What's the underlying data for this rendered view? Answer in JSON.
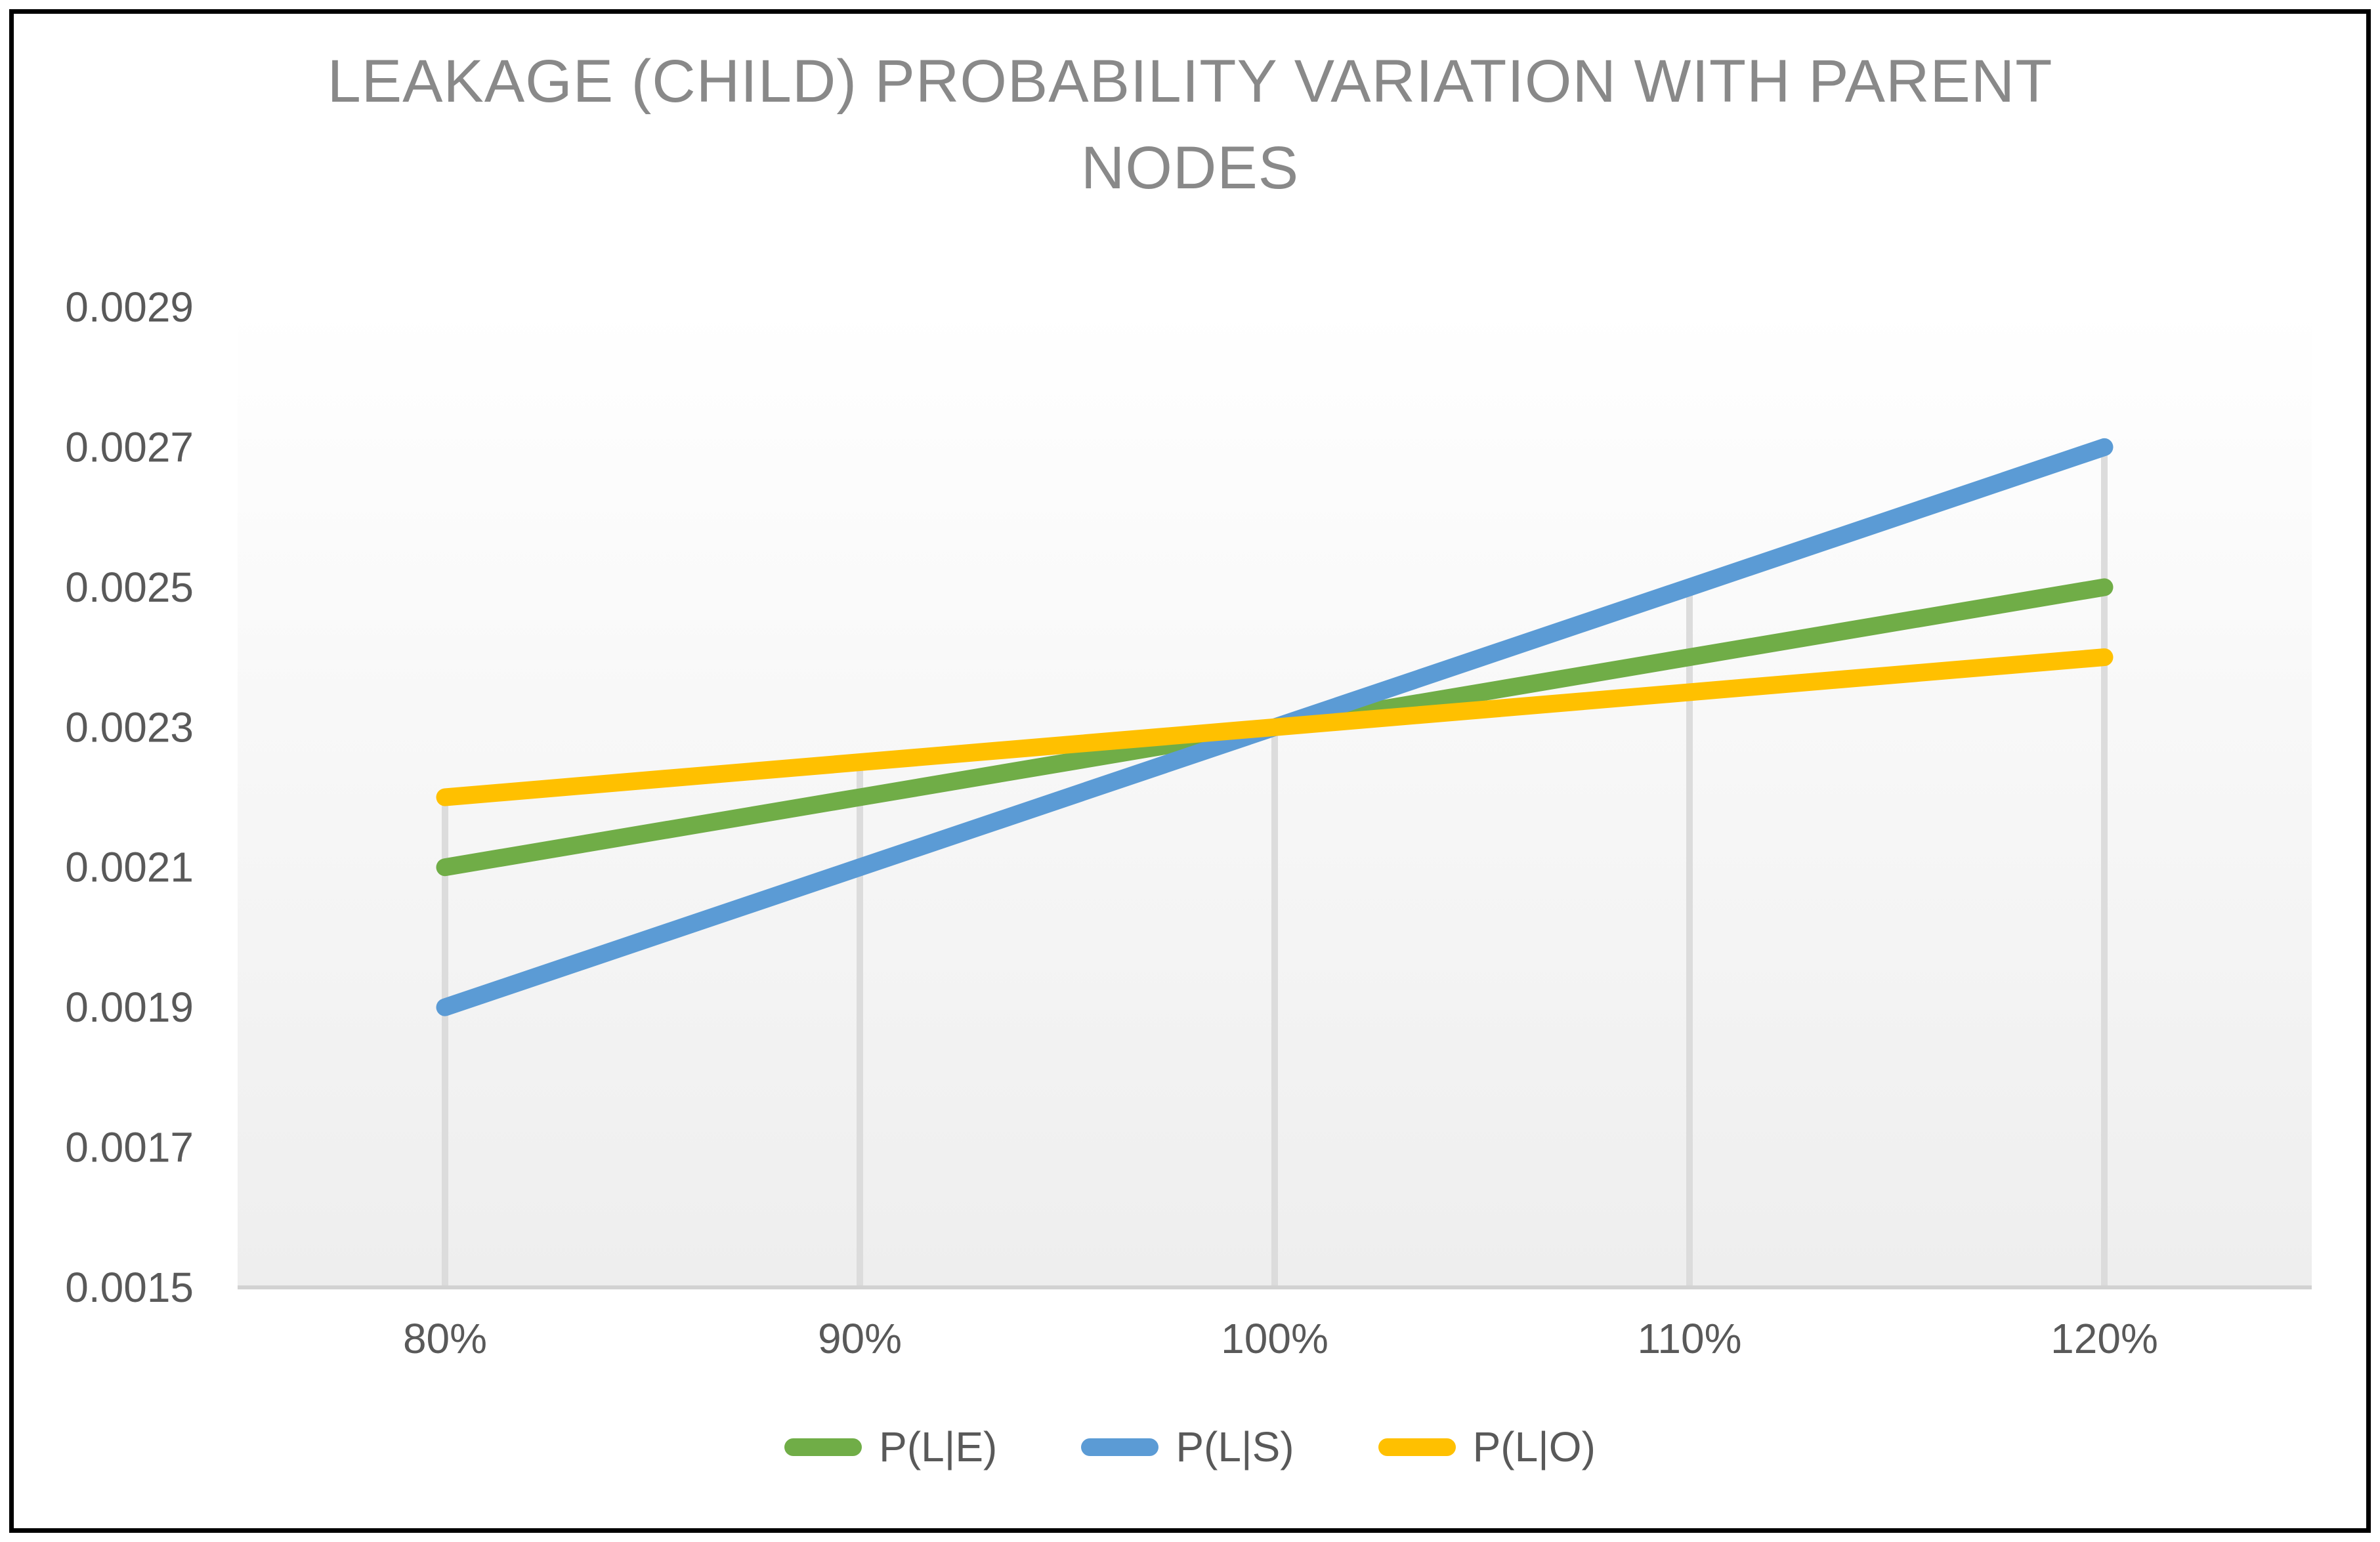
{
  "chart_data": {
    "type": "line",
    "title": "LEAKAGE (CHILD) PROBABILITY VARIATION WITH PARENT NODES",
    "categories": [
      "80%",
      "90%",
      "100%",
      "110%",
      "120%"
    ],
    "series": [
      {
        "name": "P(L|E)",
        "color": "#70AD47",
        "values": [
          0.0021,
          0.0022,
          0.0023,
          0.0024,
          0.0025
        ]
      },
      {
        "name": "P(L|S)",
        "color": "#5B9BD5",
        "values": [
          0.0019,
          0.0021,
          0.0023,
          0.0025,
          0.0027
        ]
      },
      {
        "name": "P(L|O)",
        "color": "#FFC000",
        "values": [
          0.0022,
          0.00225,
          0.0023,
          0.00235,
          0.0024
        ]
      }
    ],
    "y_ticks": [
      "0.0029",
      "0.0027",
      "0.0025",
      "0.0023",
      "0.0021",
      "0.0019",
      "0.0017",
      "0.0015"
    ],
    "ylim": [
      0.0015,
      0.0029
    ],
    "xlabel": "",
    "ylabel": "",
    "grid": "vertical-drop-lines-to-max-point",
    "legend_position": "bottom",
    "colors": {
      "title_text": "#898989",
      "tick_text": "#595959",
      "drop_line": "#DCDCDC",
      "axis_line": "#D2D2D2",
      "plot_bg_top": "#FFFFFF",
      "plot_bg_bottom": "#EEEEEE",
      "frame_border": "#000000"
    }
  }
}
